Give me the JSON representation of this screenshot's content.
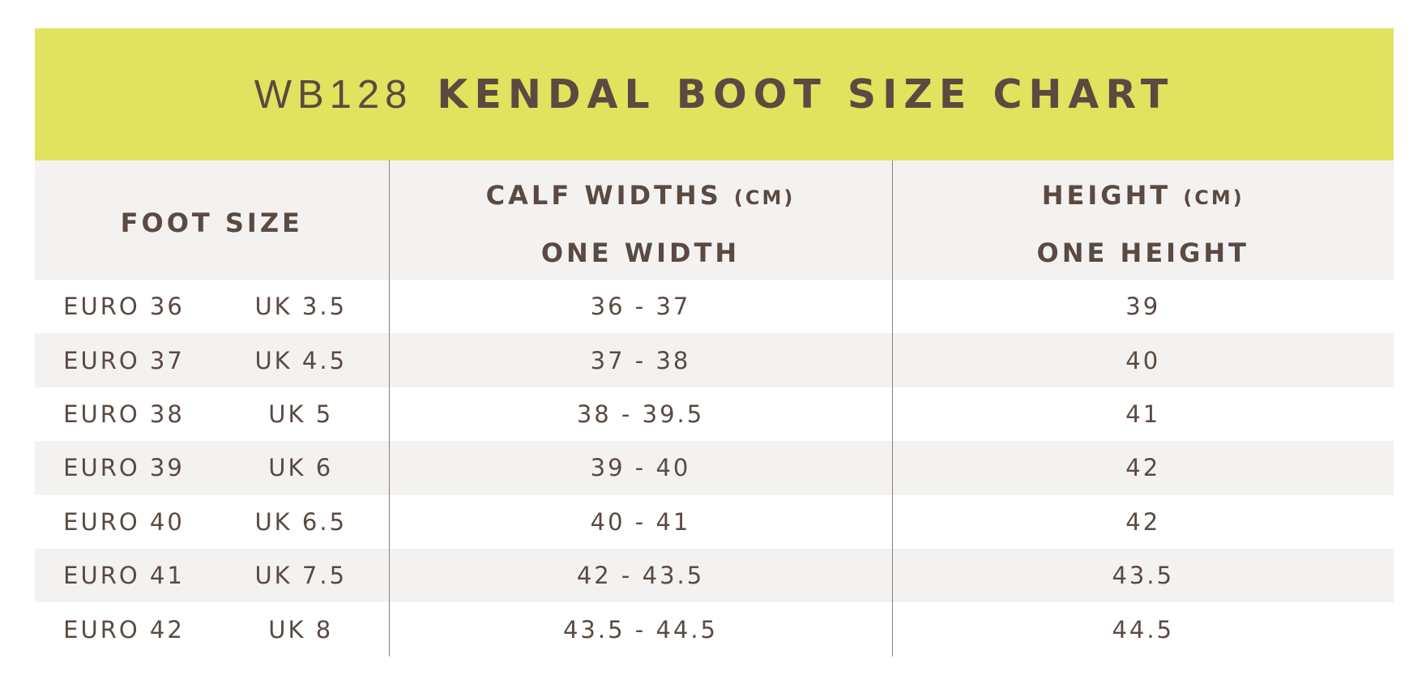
{
  "title": {
    "code": "WB128",
    "name": "KENDAL BOOT SIZE CHART"
  },
  "colors": {
    "title_band": "#e1e25d",
    "text": "#5a4a42",
    "stripe": "#f4f2f0",
    "divider": "#8a7f7a"
  },
  "header": {
    "foot_size": "FOOT SIZE",
    "calf_widths": "CALF WIDTHS",
    "calf_unit": "(CM)",
    "calf_sub": "ONE WIDTH",
    "height": "HEIGHT",
    "height_unit": "(CM)",
    "height_sub": "ONE HEIGHT"
  },
  "rows": [
    {
      "euro": "EURO 36",
      "uk": "UK 3.5",
      "calf": "36 - 37",
      "height": "39"
    },
    {
      "euro": "EURO 37",
      "uk": "UK 4.5",
      "calf": "37 - 38",
      "height": "40"
    },
    {
      "euro": "EURO 38",
      "uk": "UK 5",
      "calf": "38 - 39.5",
      "height": "41"
    },
    {
      "euro": "EURO 39",
      "uk": "UK 6",
      "calf": "39 - 40",
      "height": "42"
    },
    {
      "euro": "EURO 40",
      "uk": "UK 6.5",
      "calf": "40 - 41",
      "height": "42"
    },
    {
      "euro": "EURO 41",
      "uk": "UK 7.5",
      "calf": "42 - 43.5",
      "height": "43.5"
    },
    {
      "euro": "EURO 42",
      "uk": "UK 8",
      "calf": "43.5 - 44.5",
      "height": "44.5"
    }
  ]
}
